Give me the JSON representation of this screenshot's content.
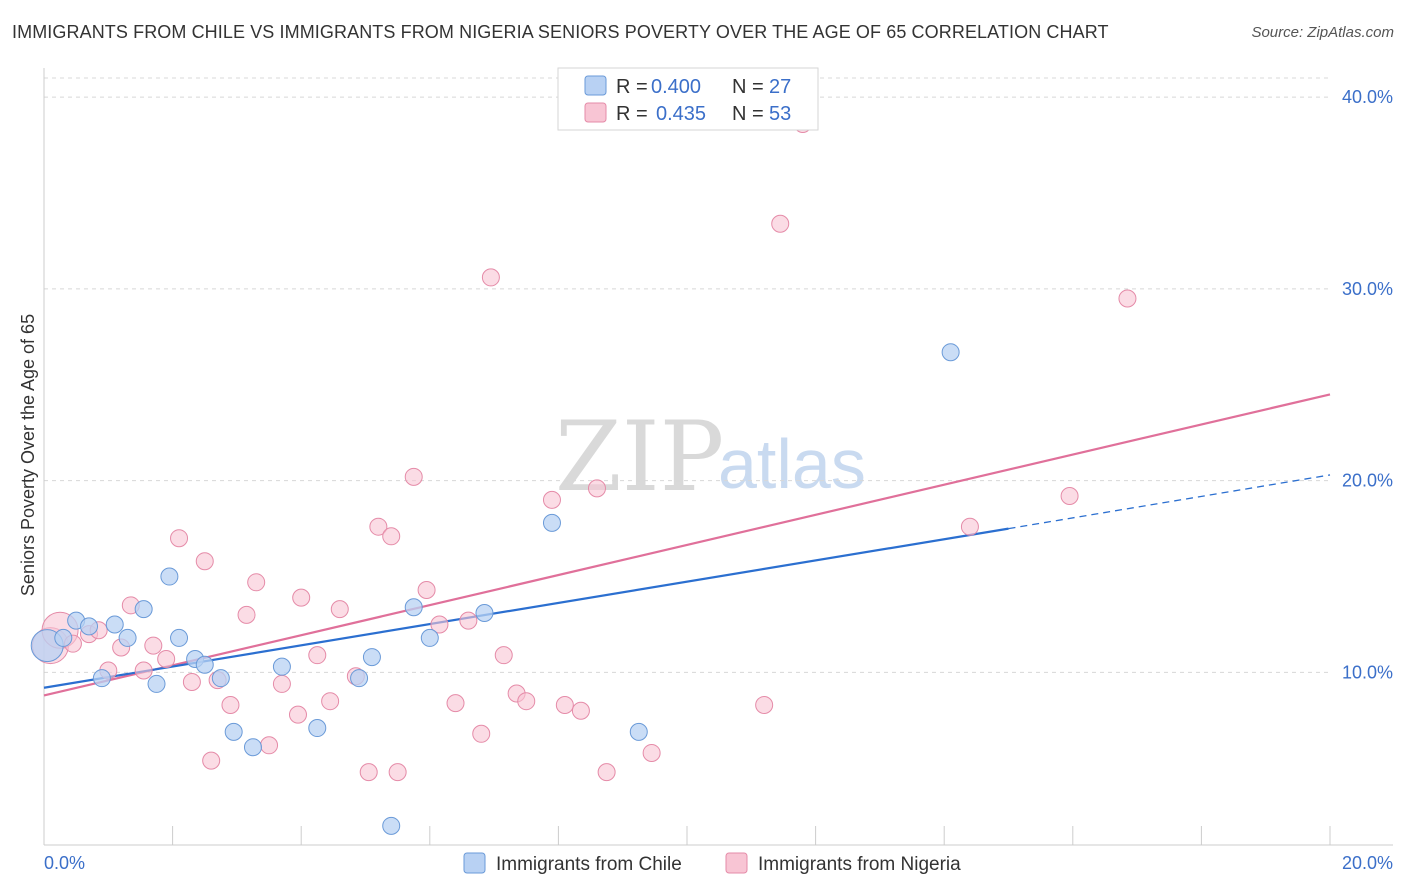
{
  "title": "IMMIGRANTS FROM CHILE VS IMMIGRANTS FROM NIGERIA SENIORS POVERTY OVER THE AGE OF 65 CORRELATION CHART",
  "source": "Source: ZipAtlas.com",
  "watermark": {
    "zip": "ZIP",
    "atlas": "atlas"
  },
  "colors": {
    "chile_fill": "#b8d1f3",
    "chile_stroke": "#6a9ad8",
    "chile_line": "#2b6fd0",
    "nigeria_fill": "#f8c5d4",
    "nigeria_stroke": "#e58ba8",
    "nigeria_line": "#e0709a",
    "grid": "#d8d8d8",
    "axis_text": "#3b6fc9"
  },
  "legend": {
    "chile": {
      "r_label": "R =",
      "r_value": "0.400",
      "n_label": "N =",
      "n_value": "27"
    },
    "nigeria": {
      "r_label": "R =",
      "r_value": "0.435",
      "n_label": "N =",
      "n_value": "53"
    }
  },
  "chart_data": {
    "type": "scatter",
    "title": "IMMIGRANTS FROM CHILE VS IMMIGRANTS FROM NIGERIA SENIORS POVERTY OVER THE AGE OF 65 CORRELATION CHART",
    "xlabel": "",
    "ylabel": "Seniors Poverty Over the Age of 65",
    "xlim": [
      0,
      20
    ],
    "ylim": [
      1,
      41
    ],
    "x_tick_labels": [
      "0.0%",
      "20.0%"
    ],
    "y_ticks": [
      10,
      20,
      30,
      40
    ],
    "y_tick_labels": [
      "10.0%",
      "20.0%",
      "30.0%",
      "40.0%"
    ],
    "grid": true,
    "legend_position": "top-center",
    "series": [
      {
        "name": "Immigrants from Chile",
        "color": "#b8d1f3",
        "points": [
          [
            0.05,
            11.4
          ],
          [
            0.3,
            11.8
          ],
          [
            0.5,
            12.7
          ],
          [
            0.7,
            12.4
          ],
          [
            0.9,
            9.7
          ],
          [
            1.1,
            12.5
          ],
          [
            1.3,
            11.8
          ],
          [
            1.55,
            13.3
          ],
          [
            1.75,
            9.4
          ],
          [
            1.95,
            15.0
          ],
          [
            2.1,
            11.8
          ],
          [
            2.35,
            10.7
          ],
          [
            2.5,
            10.4
          ],
          [
            2.75,
            9.7
          ],
          [
            2.95,
            6.9
          ],
          [
            3.25,
            6.1
          ],
          [
            3.7,
            10.3
          ],
          [
            4.25,
            7.1
          ],
          [
            4.9,
            9.7
          ],
          [
            5.1,
            10.8
          ],
          [
            5.4,
            2.0
          ],
          [
            5.75,
            13.4
          ],
          [
            6.0,
            11.8
          ],
          [
            6.85,
            13.1
          ],
          [
            7.9,
            17.8
          ],
          [
            9.25,
            6.9
          ],
          [
            14.1,
            26.7
          ]
        ],
        "trend": {
          "x": [
            0,
            15
          ],
          "y": [
            9.2,
            17.5
          ],
          "dashed_extension": {
            "x": [
              15,
              20
            ],
            "y": [
              17.5,
              20.3
            ]
          }
        }
      },
      {
        "name": "Immigrants from Nigeria",
        "color": "#f8c5d4",
        "points": [
          [
            0.1,
            11.4
          ],
          [
            0.25,
            12.2
          ],
          [
            0.45,
            11.5
          ],
          [
            0.7,
            12.0
          ],
          [
            0.85,
            12.2
          ],
          [
            1.0,
            10.1
          ],
          [
            1.2,
            11.3
          ],
          [
            1.35,
            13.5
          ],
          [
            1.55,
            10.1
          ],
          [
            1.7,
            11.4
          ],
          [
            1.9,
            10.7
          ],
          [
            2.1,
            17.0
          ],
          [
            2.3,
            9.5
          ],
          [
            2.5,
            15.8
          ],
          [
            2.7,
            9.6
          ],
          [
            2.9,
            8.3
          ],
          [
            2.6,
            5.4
          ],
          [
            3.15,
            13.0
          ],
          [
            3.3,
            14.7
          ],
          [
            3.5,
            6.2
          ],
          [
            3.7,
            9.4
          ],
          [
            3.95,
            7.8
          ],
          [
            4.0,
            13.9
          ],
          [
            4.25,
            10.9
          ],
          [
            4.45,
            8.5
          ],
          [
            4.6,
            13.3
          ],
          [
            4.85,
            9.8
          ],
          [
            5.05,
            4.8
          ],
          [
            5.2,
            17.6
          ],
          [
            5.4,
            17.1
          ],
          [
            5.5,
            4.8
          ],
          [
            5.75,
            20.2
          ],
          [
            5.95,
            14.3
          ],
          [
            6.15,
            12.5
          ],
          [
            6.4,
            8.4
          ],
          [
            6.6,
            12.7
          ],
          [
            6.8,
            6.8
          ],
          [
            6.95,
            30.6
          ],
          [
            7.15,
            10.9
          ],
          [
            7.35,
            8.9
          ],
          [
            7.5,
            8.5
          ],
          [
            7.9,
            19.0
          ],
          [
            8.1,
            8.3
          ],
          [
            8.35,
            8.0
          ],
          [
            8.6,
            19.6
          ],
          [
            8.75,
            4.8
          ],
          [
            9.45,
            5.8
          ],
          [
            11.2,
            8.3
          ],
          [
            11.45,
            33.4
          ],
          [
            11.8,
            38.6
          ],
          [
            14.4,
            17.6
          ],
          [
            15.95,
            19.2
          ],
          [
            16.85,
            29.5
          ]
        ],
        "trend": {
          "x": [
            0,
            20
          ],
          "y": [
            8.8,
            24.5
          ]
        }
      }
    ]
  },
  "bottom_legend": {
    "chile": "Immigrants from Chile",
    "nigeria": "Immigrants from Nigeria"
  }
}
